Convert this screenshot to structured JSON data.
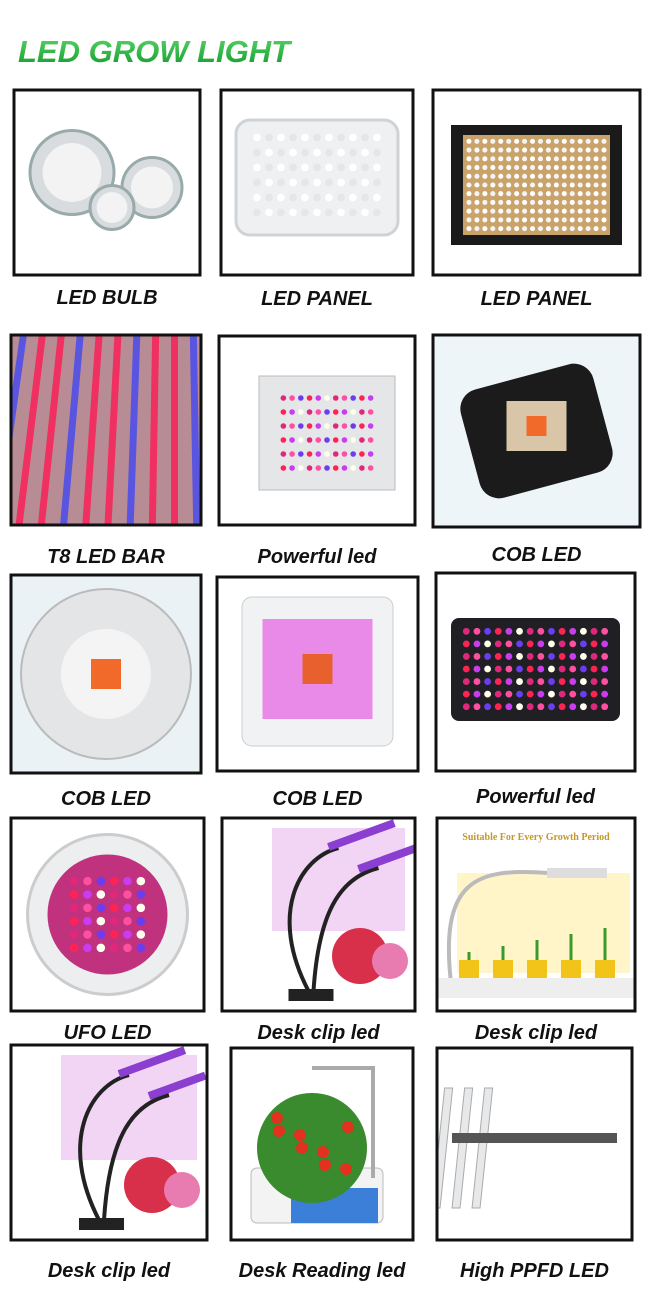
{
  "header": {
    "title": "LED GROW LIGHT"
  },
  "items": [
    {
      "caption": "LED BULB"
    },
    {
      "caption": "LED PANEL"
    },
    {
      "caption": "LED PANEL"
    },
    {
      "caption": "T8 LED BAR"
    },
    {
      "caption": "Powerful led"
    },
    {
      "caption": "COB LED"
    },
    {
      "caption": "COB LED"
    },
    {
      "caption": "COB LED"
    },
    {
      "caption": "Powerful led"
    },
    {
      "caption": "UFO LED"
    },
    {
      "caption": "Desk clip led"
    },
    {
      "caption": "Desk clip led",
      "image_text": "Suitable For Every Growth Period"
    },
    {
      "caption": "Desk clip led"
    },
    {
      "caption": "Desk Reading led"
    },
    {
      "caption": "High PPFD LED"
    }
  ]
}
